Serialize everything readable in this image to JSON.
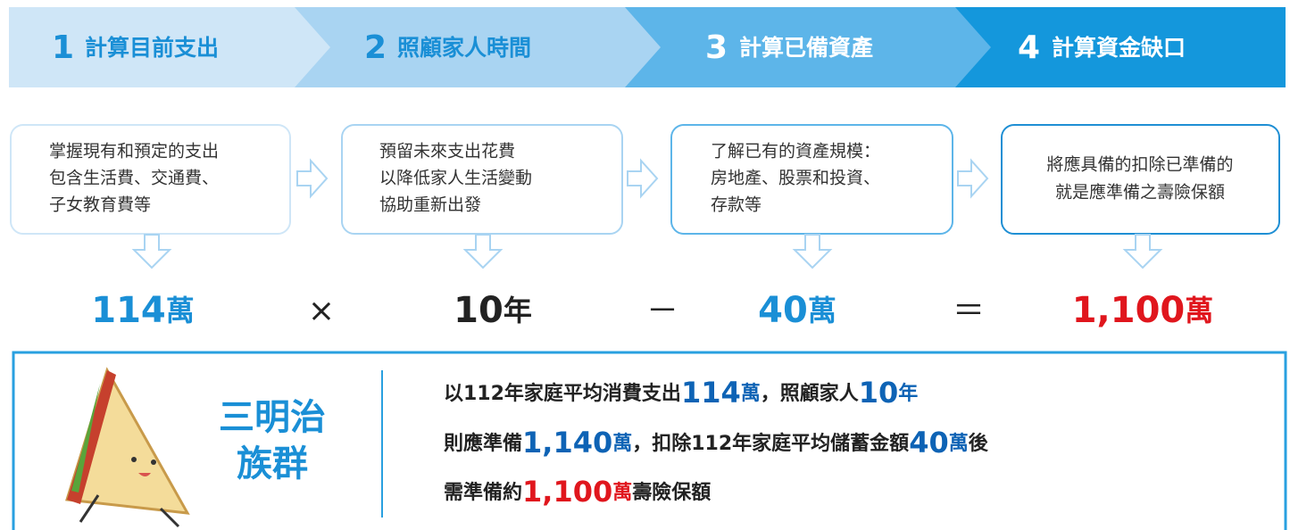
{
  "steps": [
    {
      "number": "1",
      "title": "計算目前支出"
    },
    {
      "number": "2",
      "title": "照顧家人時間"
    },
    {
      "number": "3",
      "title": "計算已備資產"
    },
    {
      "number": "4",
      "title": "計算資金缺口"
    }
  ],
  "boxes": [
    {
      "lines": [
        "掌握現有和預定的支出",
        "包含生活費、交通費、",
        "子女教育費等"
      ]
    },
    {
      "lines": [
        "預留未來支出花費",
        "以降低家人生活變動",
        "協助重新出發"
      ]
    },
    {
      "lines": [
        "了解已有的資產規模：",
        "房地產、股票和投資、",
        "存款等"
      ]
    },
    {
      "lines": [
        "將應具備的扣除已準備的",
        "就是應準備之壽險保額"
      ]
    }
  ],
  "formula": {
    "terms": [
      {
        "number": "114",
        "unit": "萬"
      },
      {
        "number": "10",
        "unit": "年"
      },
      {
        "number": "40",
        "unit": "萬"
      },
      {
        "number": "1,100",
        "unit": "萬"
      }
    ],
    "operators": [
      "×",
      "－",
      "＝"
    ]
  },
  "group": {
    "label": [
      "三明治",
      "族群"
    ]
  },
  "summary": {
    "lines": [
      [
        "以112年家庭平均消費支出",
        "114",
        "萬",
        "，照顧家人",
        "10",
        "年"
      ],
      [
        "則應準備",
        "1,140",
        "萬",
        "，扣除112年家庭平均儲蓄金額",
        "40",
        "萬",
        "後"
      ],
      [
        "需準備約",
        "1,100",
        "萬",
        "壽險保額"
      ]
    ]
  }
}
